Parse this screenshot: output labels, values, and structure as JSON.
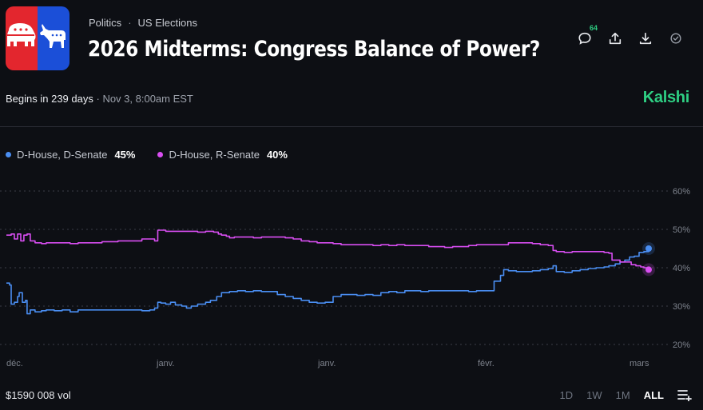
{
  "breadcrumb": {
    "category": "Politics",
    "subcategory": "US Elections"
  },
  "title": "2026 Midterms: Congress Balance of Power?",
  "toolbar": {
    "comments_count": "64"
  },
  "begins": {
    "label": "Begins in 239 days",
    "date": "Nov 3, 8:00am EST"
  },
  "brand": "Kalshi",
  "legend": [
    {
      "label": "D-House, D-Senate",
      "value": "45%",
      "color": "#4a8ef2"
    },
    {
      "label": "D-House, R-Senate",
      "value": "40%",
      "color": "#d94ef2"
    }
  ],
  "volume": "$1590 008 vol",
  "time_ranges": [
    "1D",
    "1W",
    "1M",
    "ALL"
  ],
  "active_range": "ALL",
  "chart_data": {
    "type": "line",
    "x_ticks": [
      "déc.",
      "janv.",
      "janv.",
      "févr.",
      "mars"
    ],
    "y_ticks": [
      "20%",
      "30%",
      "40%",
      "50%",
      "60%"
    ],
    "ylim": [
      20,
      60
    ],
    "grid": true,
    "series": [
      {
        "name": "D-House, D-Senate",
        "color": "#4a8ef2",
        "points": [
          [
            0,
            36
          ],
          [
            2,
            35.5
          ],
          [
            3,
            30.5
          ],
          [
            5,
            31
          ],
          [
            7,
            32.5
          ],
          [
            8,
            33.5
          ],
          [
            10,
            31
          ],
          [
            12,
            31.5
          ],
          [
            13,
            28
          ],
          [
            15,
            29
          ],
          [
            18,
            28.5
          ],
          [
            22,
            28.8
          ],
          [
            25,
            29
          ],
          [
            30,
            28.8
          ],
          [
            35,
            29
          ],
          [
            40,
            28.5
          ],
          [
            45,
            29
          ],
          [
            50,
            29
          ],
          [
            55,
            29
          ],
          [
            60,
            29
          ],
          [
            65,
            29
          ],
          [
            70,
            29
          ],
          [
            75,
            29
          ],
          [
            80,
            29
          ],
          [
            85,
            28.8
          ],
          [
            90,
            29
          ],
          [
            93,
            29.5
          ],
          [
            95,
            31
          ],
          [
            97,
            30.8
          ],
          [
            100,
            30.5
          ],
          [
            103,
            31
          ],
          [
            106,
            30.3
          ],
          [
            110,
            30
          ],
          [
            113,
            29.5
          ],
          [
            116,
            30
          ],
          [
            120,
            30.5
          ],
          [
            125,
            31
          ],
          [
            128,
            31.5
          ],
          [
            132,
            32.5
          ],
          [
            135,
            33.5
          ],
          [
            140,
            33.8
          ],
          [
            145,
            34
          ],
          [
            150,
            33.8
          ],
          [
            155,
            34
          ],
          [
            160,
            33.8
          ],
          [
            165,
            33.8
          ],
          [
            170,
            33
          ],
          [
            175,
            32.5
          ],
          [
            180,
            32
          ],
          [
            185,
            31.5
          ],
          [
            190,
            31
          ],
          [
            195,
            30.8
          ],
          [
            200,
            31
          ],
          [
            205,
            32.5
          ],
          [
            210,
            33
          ],
          [
            215,
            33
          ],
          [
            220,
            32.8
          ],
          [
            225,
            33
          ],
          [
            230,
            32.8
          ],
          [
            235,
            33.5
          ],
          [
            240,
            33.8
          ],
          [
            245,
            33.5
          ],
          [
            250,
            34
          ],
          [
            255,
            34
          ],
          [
            260,
            33.8
          ],
          [
            265,
            34
          ],
          [
            270,
            34
          ],
          [
            275,
            34
          ],
          [
            280,
            34
          ],
          [
            285,
            34
          ],
          [
            290,
            33.8
          ],
          [
            295,
            34
          ],
          [
            300,
            34
          ],
          [
            303,
            34
          ],
          [
            306,
            36.5
          ],
          [
            310,
            38
          ],
          [
            312,
            39.5
          ],
          [
            315,
            39.2
          ],
          [
            320,
            39
          ],
          [
            325,
            39
          ],
          [
            330,
            39.2
          ],
          [
            335,
            39.5
          ],
          [
            340,
            39.8
          ],
          [
            343,
            40.5
          ],
          [
            345,
            39
          ],
          [
            350,
            38.8
          ],
          [
            355,
            39.2
          ],
          [
            360,
            39.5
          ],
          [
            365,
            39.8
          ],
          [
            370,
            40
          ],
          [
            375,
            40.2
          ],
          [
            378,
            40.5
          ],
          [
            382,
            41
          ],
          [
            385,
            41.5
          ],
          [
            388,
            42
          ],
          [
            391,
            42.8
          ],
          [
            394,
            43
          ],
          [
            397,
            44
          ],
          [
            400,
            44.2
          ],
          [
            403,
            45
          ]
        ]
      },
      {
        "name": "D-House, R-Senate",
        "color": "#d94ef2",
        "points": [
          [
            0,
            48.5
          ],
          [
            3,
            48.8
          ],
          [
            5,
            47.5
          ],
          [
            7,
            48.8
          ],
          [
            9,
            47
          ],
          [
            11,
            48.5
          ],
          [
            13,
            48.8
          ],
          [
            15,
            47
          ],
          [
            18,
            46.5
          ],
          [
            22,
            46.3
          ],
          [
            25,
            46.5
          ],
          [
            30,
            46.5
          ],
          [
            35,
            46.5
          ],
          [
            40,
            46.3
          ],
          [
            45,
            46.5
          ],
          [
            50,
            46.5
          ],
          [
            55,
            46.5
          ],
          [
            60,
            46.8
          ],
          [
            65,
            46.8
          ],
          [
            70,
            47
          ],
          [
            75,
            47
          ],
          [
            80,
            47
          ],
          [
            85,
            47.5
          ],
          [
            90,
            47.5
          ],
          [
            93,
            47
          ],
          [
            95,
            49.8
          ],
          [
            98,
            49.8
          ],
          [
            100,
            49.5
          ],
          [
            105,
            49.5
          ],
          [
            110,
            49.5
          ],
          [
            115,
            49.5
          ],
          [
            120,
            49.3
          ],
          [
            125,
            49.5
          ],
          [
            130,
            49.3
          ],
          [
            133,
            48.8
          ],
          [
            135,
            48.5
          ],
          [
            138,
            48.2
          ],
          [
            140,
            47.8
          ],
          [
            143,
            48
          ],
          [
            145,
            48
          ],
          [
            150,
            48
          ],
          [
            155,
            47.8
          ],
          [
            160,
            48
          ],
          [
            165,
            48
          ],
          [
            170,
            48
          ],
          [
            175,
            47.8
          ],
          [
            180,
            47.5
          ],
          [
            185,
            47
          ],
          [
            190,
            46.8
          ],
          [
            195,
            46.5
          ],
          [
            200,
            46.5
          ],
          [
            205,
            46.3
          ],
          [
            210,
            46
          ],
          [
            215,
            46
          ],
          [
            220,
            46
          ],
          [
            225,
            46
          ],
          [
            230,
            45.8
          ],
          [
            235,
            46
          ],
          [
            240,
            45.8
          ],
          [
            245,
            46
          ],
          [
            250,
            45.8
          ],
          [
            255,
            45.8
          ],
          [
            260,
            45.8
          ],
          [
            265,
            45.5
          ],
          [
            270,
            45.5
          ],
          [
            275,
            45.3
          ],
          [
            280,
            45.5
          ],
          [
            285,
            45.5
          ],
          [
            290,
            45.8
          ],
          [
            295,
            46
          ],
          [
            300,
            46
          ],
          [
            305,
            46
          ],
          [
            310,
            46
          ],
          [
            315,
            46.5
          ],
          [
            320,
            46.5
          ],
          [
            325,
            46.5
          ],
          [
            330,
            46.3
          ],
          [
            335,
            46
          ],
          [
            340,
            45.8
          ],
          [
            343,
            44.5
          ],
          [
            345,
            44.2
          ],
          [
            350,
            44
          ],
          [
            355,
            44.2
          ],
          [
            360,
            44.2
          ],
          [
            365,
            44.2
          ],
          [
            370,
            44.2
          ],
          [
            375,
            44
          ],
          [
            378,
            43.8
          ],
          [
            380,
            42
          ],
          [
            382,
            42
          ],
          [
            385,
            41.5
          ],
          [
            388,
            41.5
          ],
          [
            392,
            40.8
          ],
          [
            395,
            40.5
          ],
          [
            398,
            40.2
          ],
          [
            400,
            40
          ],
          [
            403,
            39.5
          ]
        ]
      }
    ]
  }
}
